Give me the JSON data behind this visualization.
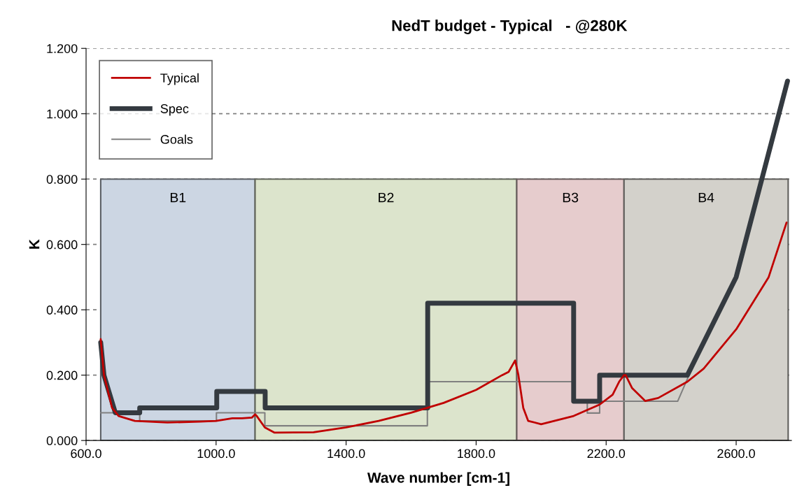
{
  "chart_data": {
    "type": "line",
    "title": "NedT budget - Typical   - @280K",
    "xlabel": "Wave number [cm-1]",
    "ylabel": "K",
    "xlim": [
      600,
      2770
    ],
    "xticks": [
      {
        "value": 600,
        "label": "600.0"
      },
      {
        "value": 1000,
        "label": "1000.0"
      },
      {
        "value": 1400,
        "label": "1400.0"
      },
      {
        "value": 1800,
        "label": "1800.0"
      },
      {
        "value": 2200,
        "label": "2200.0"
      },
      {
        "value": 2600,
        "label": "2600.0"
      }
    ],
    "ylim": [
      0,
      1.2
    ],
    "yticks": [
      {
        "value": 0,
        "label": "0.000"
      },
      {
        "value": 0.2,
        "label": "0.200"
      },
      {
        "value": 0.4,
        "label": "0.400"
      },
      {
        "value": 0.6,
        "label": "0.600"
      },
      {
        "value": 0.8,
        "label": "0.800"
      },
      {
        "value": 1.0,
        "label": "1.000"
      },
      {
        "value": 1.2,
        "label": "1.200"
      }
    ],
    "grid": "y",
    "legend": "top left",
    "marker": "none",
    "series": [
      {
        "name": "Typical",
        "color": "#c00000",
        "x": [
          645,
          655,
          680,
          700,
          750,
          850,
          950,
          1000,
          1050,
          1080,
          1110,
          1120,
          1125,
          1150,
          1180,
          1300,
          1400,
          1500,
          1600,
          1650,
          1700,
          1800,
          1880,
          1900,
          1920,
          1930,
          1945,
          1960,
          2000,
          2100,
          2180,
          2220,
          2240,
          2255,
          2260,
          2280,
          2320,
          2360,
          2450,
          2500,
          2600,
          2700,
          2755
        ],
        "values": [
          0.31,
          0.2,
          0.1,
          0.075,
          0.06,
          0.055,
          0.058,
          0.06,
          0.068,
          0.068,
          0.07,
          0.08,
          0.075,
          0.04,
          0.024,
          0.025,
          0.04,
          0.06,
          0.085,
          0.1,
          0.115,
          0.155,
          0.2,
          0.21,
          0.245,
          0.2,
          0.1,
          0.06,
          0.05,
          0.075,
          0.11,
          0.14,
          0.18,
          0.2,
          0.2,
          0.16,
          0.121,
          0.13,
          0.18,
          0.22,
          0.34,
          0.5,
          0.667
        ]
      },
      {
        "name": "Spec",
        "color": "#343a40",
        "x": [
          645,
          655,
          690,
          765,
          765,
          1002,
          1002,
          1151,
          1151,
          1651,
          1651,
          2100,
          2100,
          2180,
          2180,
          2450,
          2600,
          2758
        ],
        "values": [
          0.3,
          0.2,
          0.085,
          0.085,
          0.1,
          0.1,
          0.15,
          0.15,
          0.1,
          0.1,
          0.42,
          0.42,
          0.12,
          0.12,
          0.2,
          0.2,
          0.5,
          1.1
        ]
      },
      {
        "name": "Goals",
        "color": "#808080",
        "x": [
          645,
          765,
          765,
          1001,
          1001,
          1150,
          1150,
          1650,
          1650,
          2100,
          2100,
          2142,
          2142,
          2180,
          2180,
          2420,
          2455,
          2600,
          2758
        ],
        "values": [
          0.085,
          0.085,
          0.06,
          0.06,
          0.085,
          0.085,
          0.045,
          0.045,
          0.18,
          0.18,
          0.12,
          0.12,
          0.084,
          0.084,
          0.12,
          0.12,
          0.2,
          0.5,
          1.1
        ]
      }
    ],
    "bands": [
      {
        "axis": "x",
        "from": 645,
        "to": 1120,
        "label": "B1",
        "color": "#ccd6e3"
      },
      {
        "axis": "x",
        "from": 1120,
        "to": 1925,
        "label": "B2",
        "color": "#dce4cc"
      },
      {
        "axis": "x",
        "from": 1925,
        "to": 2255,
        "label": "B3",
        "color": "#e6cccd"
      },
      {
        "axis": "x",
        "from": 2255,
        "to": 2760,
        "label": "B4",
        "color": "#d3d1cb"
      }
    ]
  }
}
